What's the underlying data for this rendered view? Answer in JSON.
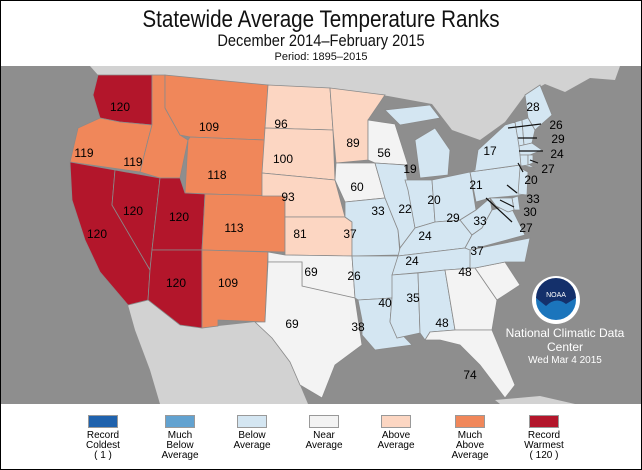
{
  "title": "Statewide Average Temperature Ranks",
  "subtitle": "December 2014–February 2015",
  "period": "Period: 1895–2015",
  "credit": {
    "org": "National Climatic Data Center",
    "date": "Wed Mar  4 2015",
    "logo_text": "NOAA"
  },
  "legend": [
    {
      "key": "record_coldest",
      "lines": [
        "Record",
        "Coldest",
        "( 1 )"
      ],
      "color": "#1f62ad"
    },
    {
      "key": "much_below",
      "lines": [
        "Much",
        "Below",
        "Average"
      ],
      "color": "#62a2d0"
    },
    {
      "key": "below",
      "lines": [
        "Below",
        "Average",
        ""
      ],
      "color": "#d4e6f2"
    },
    {
      "key": "near",
      "lines": [
        "Near",
        "Average",
        ""
      ],
      "color": "#f3f3f3"
    },
    {
      "key": "above",
      "lines": [
        "Above",
        "Average",
        ""
      ],
      "color": "#fcd6c2"
    },
    {
      "key": "much_above",
      "lines": [
        "Much",
        "Above",
        "Average"
      ],
      "color": "#f0875a"
    },
    {
      "key": "record_warmest",
      "lines": [
        "Record",
        "Warmest",
        "( 120 )"
      ],
      "color": "#b3162b"
    }
  ],
  "states": {
    "WA": {
      "rank": "120",
      "cat": "record_warmest"
    },
    "OR": {
      "rank": "119",
      "cat": "much_above"
    },
    "CA": {
      "rank": "120",
      "cat": "record_warmest"
    },
    "NV": {
      "rank": "120",
      "cat": "record_warmest"
    },
    "ID": {
      "rank": "119",
      "cat": "much_above"
    },
    "MT": {
      "rank": "109",
      "cat": "much_above"
    },
    "WY": {
      "rank": "118",
      "cat": "much_above"
    },
    "UT": {
      "rank": "120",
      "cat": "record_warmest"
    },
    "AZ": {
      "rank": "120",
      "cat": "record_warmest"
    },
    "CO": {
      "rank": "113",
      "cat": "much_above"
    },
    "NM": {
      "rank": "109",
      "cat": "much_above"
    },
    "ND": {
      "rank": "96",
      "cat": "above"
    },
    "SD": {
      "rank": "100",
      "cat": "above"
    },
    "NE": {
      "rank": "93",
      "cat": "above"
    },
    "KS": {
      "rank": "81",
      "cat": "above"
    },
    "OK": {
      "rank": "69",
      "cat": "near"
    },
    "TX": {
      "rank": "69",
      "cat": "near"
    },
    "MN": {
      "rank": "89",
      "cat": "above"
    },
    "IA": {
      "rank": "60",
      "cat": "near"
    },
    "MO": {
      "rank": "37",
      "cat": "below"
    },
    "AR": {
      "rank": "26",
      "cat": "below"
    },
    "LA": {
      "rank": "38",
      "cat": "below"
    },
    "WI": {
      "rank": "56",
      "cat": "near"
    },
    "IL": {
      "rank": "33",
      "cat": "below"
    },
    "MI": {
      "rank": "19",
      "cat": "below"
    },
    "IN": {
      "rank": "22",
      "cat": "below"
    },
    "OH": {
      "rank": "20",
      "cat": "below"
    },
    "KY": {
      "rank": "24",
      "cat": "below"
    },
    "TN": {
      "rank": "24",
      "cat": "below"
    },
    "MS": {
      "rank": "40",
      "cat": "below"
    },
    "AL": {
      "rank": "35",
      "cat": "below"
    },
    "GA": {
      "rank": "48",
      "cat": "near"
    },
    "FL": {
      "rank": "74",
      "cat": "near"
    },
    "SC": {
      "rank": "48",
      "cat": "near"
    },
    "NC": {
      "rank": "37",
      "cat": "below"
    },
    "VA": {
      "rank": "33",
      "cat": "below"
    },
    "WV": {
      "rank": "29",
      "cat": "below"
    },
    "PA": {
      "rank": "21",
      "cat": "below"
    },
    "NY": {
      "rank": "17",
      "cat": "below"
    },
    "ME": {
      "rank": "28",
      "cat": "below"
    },
    "NH": {
      "rank": "26",
      "cat": "below"
    },
    "VT": {
      "rank": "29",
      "cat": "below"
    },
    "MA": {
      "rank": "24",
      "cat": "below"
    },
    "RI": {
      "rank": "27",
      "cat": "below"
    },
    "CT": {
      "rank": "20",
      "cat": "below"
    },
    "NJ": {
      "rank": "33",
      "cat": "below"
    },
    "DE": {
      "rank": "30",
      "cat": "below"
    },
    "MD": {
      "rank": "27",
      "cat": "below"
    }
  },
  "colors": {
    "ocean": "#8e8e8e",
    "land_other": "#d2d2d2"
  }
}
